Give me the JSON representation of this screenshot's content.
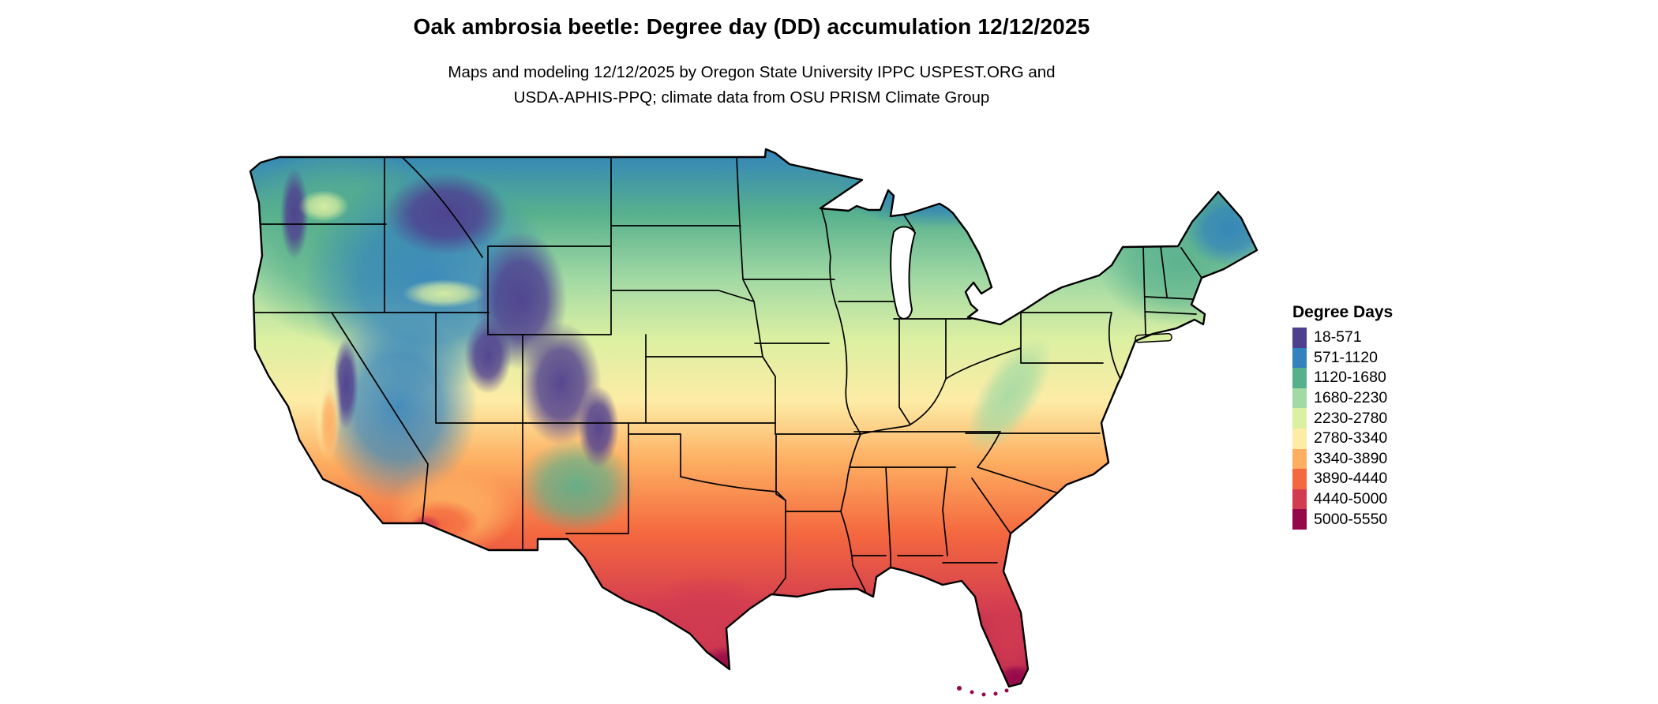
{
  "figure": {
    "title": "Oak ambrosia beetle: Degree day (DD) accumulation 12/12/2025",
    "subtitle_line1": "Maps and modeling 12/12/2025 by Oregon State University IPPC USPEST.ORG and",
    "subtitle_line2": "USDA-APHIS-PPQ; climate data from OSU PRISM Climate Group"
  },
  "legend": {
    "title": "Degree Days",
    "entries": [
      {
        "label": "18-571",
        "color": "#4f3f8f"
      },
      {
        "label": "571-1120",
        "color": "#3282bd"
      },
      {
        "label": "1120-1680",
        "color": "#57b08d"
      },
      {
        "label": "1680-2230",
        "color": "#a2d9a4"
      },
      {
        "label": "2230-2780",
        "color": "#dcf0a2"
      },
      {
        "label": "2780-3340",
        "color": "#fdeca6"
      },
      {
        "label": "3340-3890",
        "color": "#fdae61"
      },
      {
        "label": "3890-4440",
        "color": "#f4683f"
      },
      {
        "label": "4440-5000",
        "color": "#d23c51"
      },
      {
        "label": "5000-5550",
        "color": "#94094a"
      }
    ]
  },
  "map": {
    "name": "Continental United States choropleth of accumulated degree days",
    "pattern_notes": [
      {
        "region": "High Rockies, Sierra Nevada, Cascades",
        "band": "18-571"
      },
      {
        "region": "Northern plains, Great Basin, Great Lakes, New England",
        "band": "571-1680"
      },
      {
        "region": "Midwest and Appalachians",
        "band": "1680-2780"
      },
      {
        "region": "Central plains, mid-South, Virginia",
        "band": "2780-3340"
      },
      {
        "region": "Southern plains, Gulf states, Carolinas",
        "band": "3340-4440"
      },
      {
        "region": "Desert Southwest, deep South Texas, Florida peninsula",
        "band": "4440-5550"
      }
    ]
  },
  "chart_data": {
    "type": "heatmap",
    "title": "Oak ambrosia beetle: Degree day (DD) accumulation 12/12/2025",
    "legend_title": "Degree Days",
    "classes": [
      "18-571",
      "571-1120",
      "1120-1680",
      "1680-2230",
      "2230-2780",
      "2780-3340",
      "3340-3890",
      "3890-4440",
      "4440-5000",
      "5000-5550"
    ]
  }
}
